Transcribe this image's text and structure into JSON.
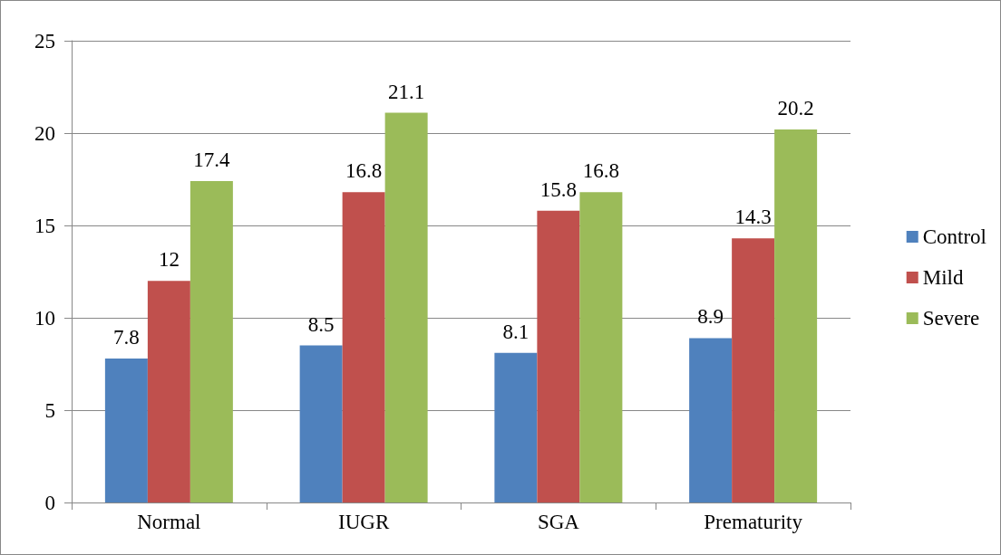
{
  "chart_data": {
    "type": "bar",
    "categories": [
      "Normal",
      "IUGR",
      "SGA",
      "Prematurity"
    ],
    "series": [
      {
        "name": "Control",
        "color": "#4f81bd",
        "values": [
          7.8,
          8.5,
          8.1,
          8.9
        ]
      },
      {
        "name": "Mild",
        "color": "#c0504d",
        "values": [
          12,
          16.8,
          15.8,
          14.3
        ]
      },
      {
        "name": "Severe",
        "color": "#9bbb59",
        "values": [
          17.4,
          21.1,
          16.8,
          20.2
        ]
      }
    ],
    "ylim": [
      0,
      25
    ],
    "yticks": [
      0,
      5,
      10,
      15,
      20,
      25
    ],
    "grid": "y",
    "legend": "right",
    "data_labels": true
  }
}
